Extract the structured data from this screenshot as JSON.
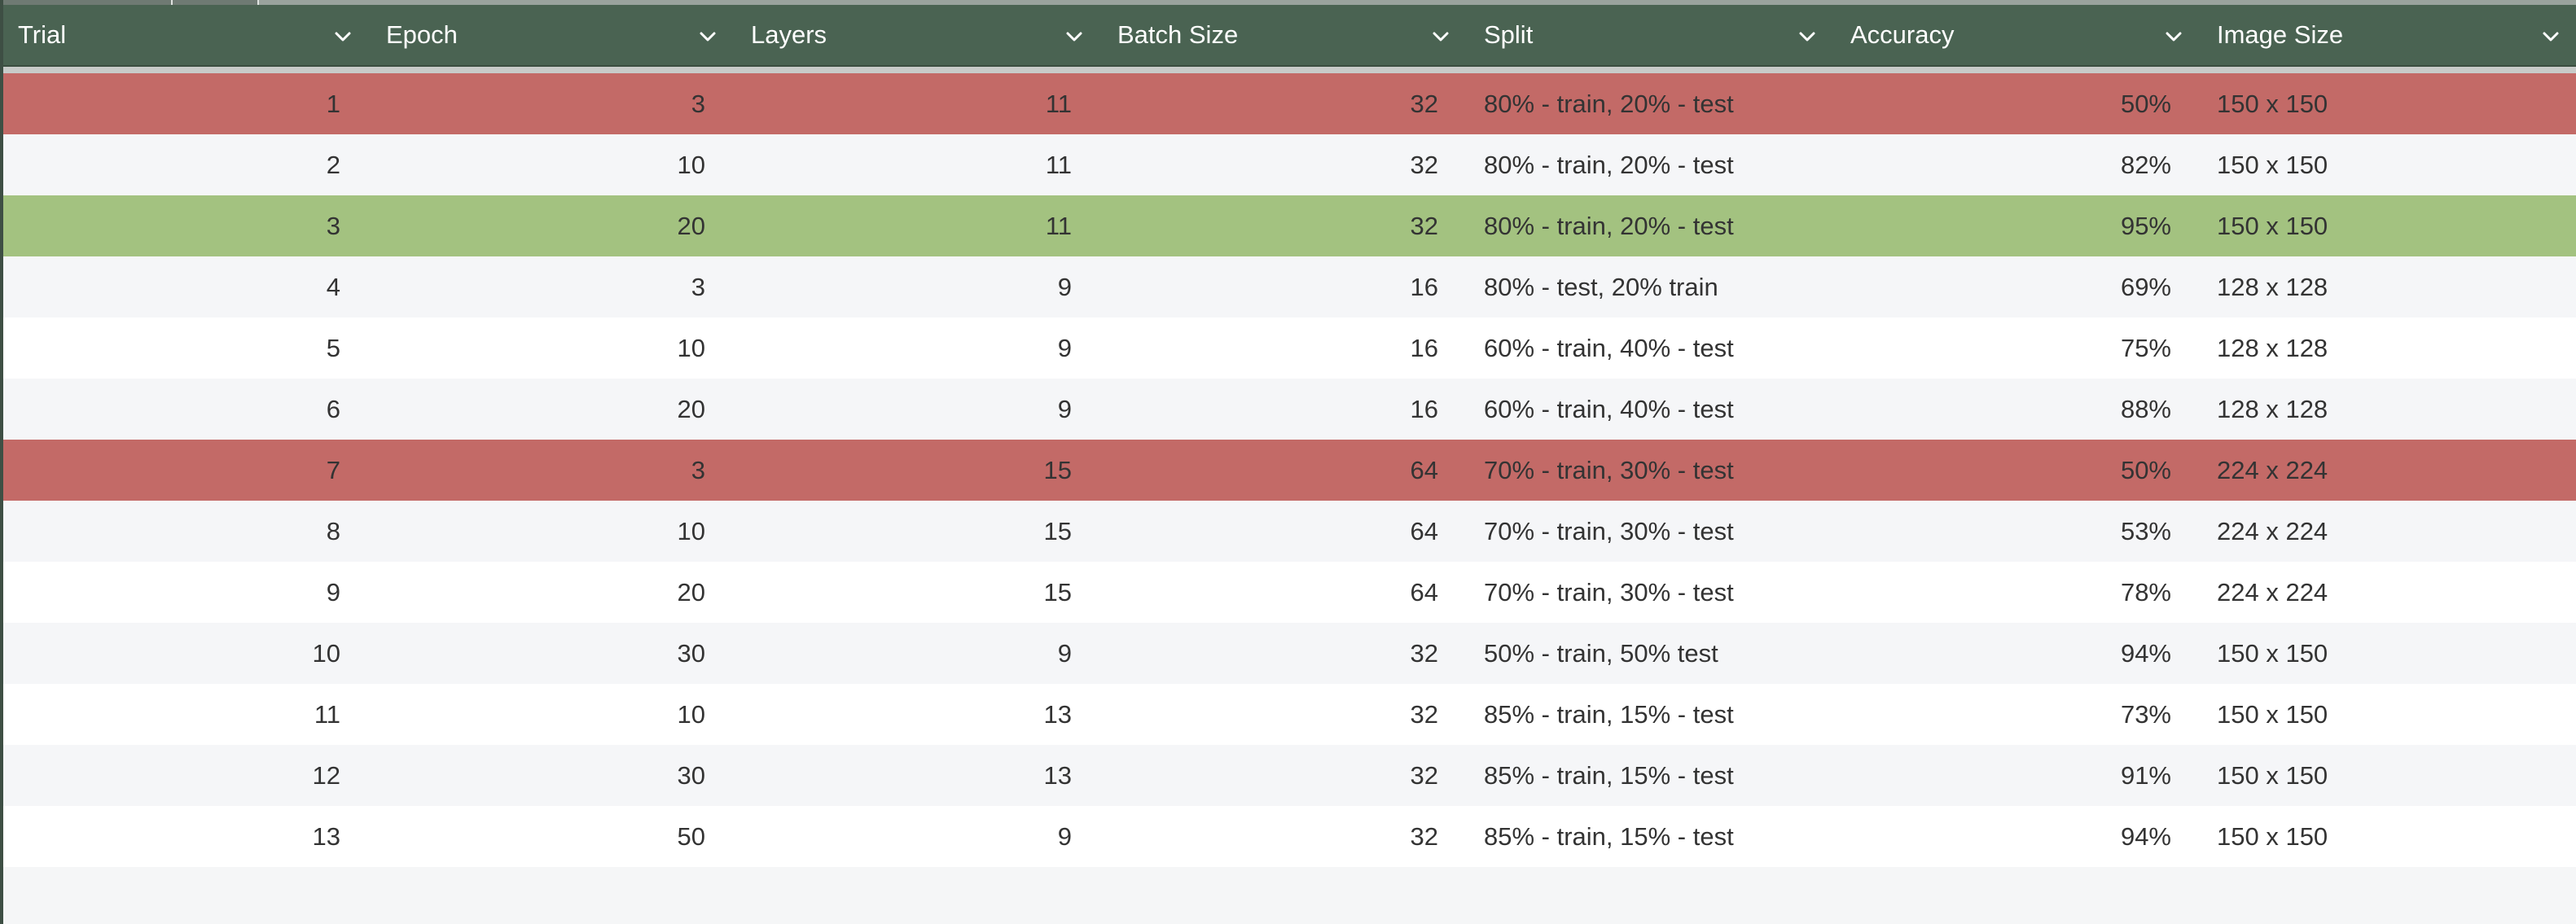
{
  "columns": [
    {
      "key": "trial",
      "label": "Trial"
    },
    {
      "key": "epoch",
      "label": "Epoch"
    },
    {
      "key": "layers",
      "label": "Layers"
    },
    {
      "key": "batch_size",
      "label": "Batch Size"
    },
    {
      "key": "split",
      "label": "Split"
    },
    {
      "key": "accuracy",
      "label": "Accuracy"
    },
    {
      "key": "image_size",
      "label": "Image Size"
    }
  ],
  "rows": [
    {
      "trial": "1",
      "epoch": "3",
      "layers": "11",
      "batch_size": "32",
      "split": "80% - train, 20% - test",
      "accuracy": "50%",
      "image_size": "150 x 150",
      "highlight": "red"
    },
    {
      "trial": "2",
      "epoch": "10",
      "layers": "11",
      "batch_size": "32",
      "split": "80% - train, 20% - test",
      "accuracy": "82%",
      "image_size": "150 x 150",
      "highlight": "none"
    },
    {
      "trial": "3",
      "epoch": "20",
      "layers": "11",
      "batch_size": "32",
      "split": "80% - train, 20% - test",
      "accuracy": "95%",
      "image_size": "150 x 150",
      "highlight": "green"
    },
    {
      "trial": "4",
      "epoch": "3",
      "layers": "9",
      "batch_size": "16",
      "split": "80% - test, 20% train",
      "accuracy": "69%",
      "image_size": "128 x 128",
      "highlight": "none"
    },
    {
      "trial": "5",
      "epoch": "10",
      "layers": "9",
      "batch_size": "16",
      "split": "60% - train, 40% - test",
      "accuracy": "75%",
      "image_size": "128 x 128",
      "highlight": "none"
    },
    {
      "trial": "6",
      "epoch": "20",
      "layers": "9",
      "batch_size": "16",
      "split": "60% - train, 40% - test",
      "accuracy": "88%",
      "image_size": "128 x 128",
      "highlight": "none"
    },
    {
      "trial": "7",
      "epoch": "3",
      "layers": "15",
      "batch_size": "64",
      "split": "70% - train, 30% - test",
      "accuracy": "50%",
      "image_size": "224 x 224",
      "highlight": "red"
    },
    {
      "trial": "8",
      "epoch": "10",
      "layers": "15",
      "batch_size": "64",
      "split": "70% - train, 30% - test",
      "accuracy": "53%",
      "image_size": "224 x 224",
      "highlight": "none"
    },
    {
      "trial": "9",
      "epoch": "20",
      "layers": "15",
      "batch_size": "64",
      "split": "70% - train, 30% - test",
      "accuracy": "78%",
      "image_size": "224 x 224",
      "highlight": "none"
    },
    {
      "trial": "10",
      "epoch": "30",
      "layers": "9",
      "batch_size": "32",
      "split": "50% - train, 50% test",
      "accuracy": "94%",
      "image_size": "150 x 150",
      "highlight": "none"
    },
    {
      "trial": "11",
      "epoch": "10",
      "layers": "13",
      "batch_size": "32",
      "split": "85% - train, 15% - test",
      "accuracy": "73%",
      "image_size": "150 x 150",
      "highlight": "none"
    },
    {
      "trial": "12",
      "epoch": "30",
      "layers": "13",
      "batch_size": "32",
      "split": "85% - train, 15% - test",
      "accuracy": "91%",
      "image_size": "150 x 150",
      "highlight": "none"
    },
    {
      "trial": "13",
      "epoch": "50",
      "layers": "9",
      "batch_size": "32",
      "split": "85% - train, 15% - test",
      "accuracy": "94%",
      "image_size": "150 x 150",
      "highlight": "none"
    }
  ],
  "icons": {
    "sort": "chevron-down-icon"
  },
  "colors": {
    "header_bg": "#4a6352",
    "header_text": "#ffffff",
    "row_red": "#c36a67",
    "row_green": "#a3c280",
    "row_white": "#ffffff",
    "row_alt": "#f5f6f8",
    "cell_text": "#333333"
  }
}
